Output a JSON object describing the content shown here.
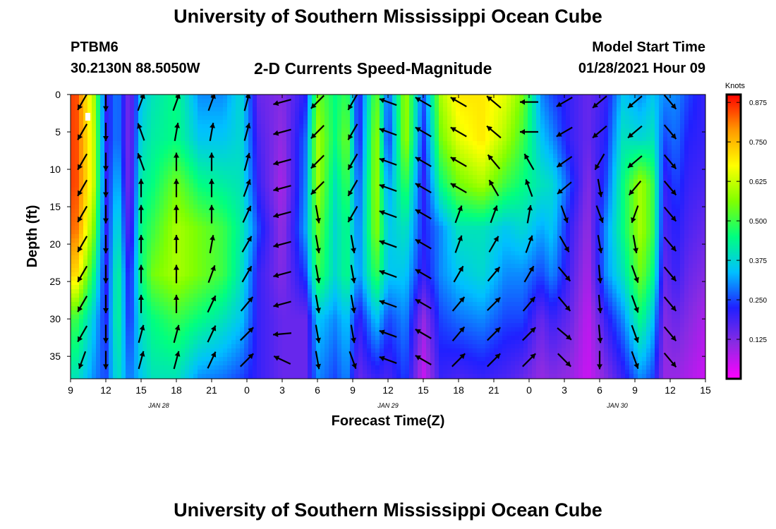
{
  "header": {
    "title": "University of Southern Mississippi Ocean Cube",
    "station": "PTBM6",
    "coords": "30.2130N 88.5050W",
    "subtitle": "2-D Currents Speed-Magnitude",
    "model_label": "Model Start Time",
    "model_time": "01/28/2021 Hour 09"
  },
  "footer": {
    "title": "University of Southern Mississippi Ocean Cube"
  },
  "chart_data": {
    "type": "heatmap",
    "xlabel": "Forecast Time(Z)",
    "ylabel": "Depth (ft)",
    "x_tick_labels": [
      "9",
      "12",
      "15",
      "18",
      "21",
      "0",
      "3",
      "6",
      "9",
      "12",
      "15",
      "18",
      "21",
      "0",
      "3",
      "6",
      "9",
      "12",
      "15"
    ],
    "x_range_hours": [
      0,
      54
    ],
    "date_labels": [
      {
        "label": "JAN  28",
        "hour": 7.5
      },
      {
        "label": "JAN  29",
        "hour": 27
      },
      {
        "label": "JAN  30",
        "hour": 46.5
      }
    ],
    "y_ticks": [
      0,
      5,
      10,
      15,
      20,
      25,
      30,
      35
    ],
    "y_range": [
      0,
      38
    ],
    "y_inverted": true,
    "colorbar": {
      "label": "Knots",
      "ticks": [
        "0.875",
        "0.750",
        "0.625",
        "0.500",
        "0.375",
        "0.250",
        "0.125"
      ],
      "tick_values": [
        0.875,
        0.75,
        0.625,
        0.5,
        0.375,
        0.25,
        0.125
      ],
      "range": [
        0,
        0.9
      ],
      "colors": [
        "#ff00ff",
        "#8a2be2",
        "#2020ff",
        "#00c0ff",
        "#00ff80",
        "#80ff00",
        "#ffff00",
        "#ff9900",
        "#ff0000"
      ]
    },
    "speed_profiles_knots": [
      {
        "hour": 0.5,
        "profile": [
          0.85,
          0.85,
          0.85,
          0.82,
          0.72,
          0.5,
          0.4
        ]
      },
      {
        "hour": 2.0,
        "profile": [
          0.6,
          0.62,
          0.62,
          0.55,
          0.45,
          0.35,
          0.3
        ]
      },
      {
        "hour": 3.0,
        "profile": [
          0.2,
          0.2,
          0.2,
          0.2,
          0.2,
          0.22,
          0.25
        ]
      },
      {
        "hour": 4.0,
        "profile": [
          0.3,
          0.3,
          0.35,
          0.4,
          0.45,
          0.45,
          0.4
        ]
      },
      {
        "hour": 5.0,
        "profile": [
          0.12,
          0.12,
          0.12,
          0.15,
          0.2,
          0.22,
          0.28
        ]
      },
      {
        "hour": 6.0,
        "profile": [
          0.35,
          0.38,
          0.42,
          0.45,
          0.45,
          0.4,
          0.35
        ]
      },
      {
        "hour": 7.0,
        "profile": [
          0.4,
          0.42,
          0.45,
          0.5,
          0.55,
          0.45,
          0.4
        ]
      },
      {
        "hour": 9.0,
        "profile": [
          0.45,
          0.45,
          0.55,
          0.6,
          0.6,
          0.5,
          0.4
        ]
      },
      {
        "hour": 11.0,
        "profile": [
          0.3,
          0.35,
          0.45,
          0.55,
          0.55,
          0.45,
          0.3
        ]
      },
      {
        "hour": 13.0,
        "profile": [
          0.3,
          0.35,
          0.42,
          0.5,
          0.5,
          0.4,
          0.28
        ]
      },
      {
        "hour": 14.5,
        "profile": [
          0.38,
          0.38,
          0.4,
          0.42,
          0.4,
          0.35,
          0.25
        ]
      },
      {
        "hour": 16.0,
        "profile": [
          0.15,
          0.18,
          0.2,
          0.25,
          0.2,
          0.2,
          0.2
        ]
      },
      {
        "hour": 18.0,
        "profile": [
          0.12,
          0.1,
          0.08,
          0.1,
          0.12,
          0.15,
          0.15
        ]
      },
      {
        "hour": 20.0,
        "profile": [
          0.22,
          0.28,
          0.3,
          0.32,
          0.25,
          0.15,
          0.15
        ]
      },
      {
        "hour": 21.0,
        "profile": [
          0.55,
          0.6,
          0.6,
          0.55,
          0.5,
          0.35,
          0.3
        ]
      },
      {
        "hour": 22.5,
        "profile": [
          0.45,
          0.45,
          0.4,
          0.38,
          0.38,
          0.3,
          0.25
        ]
      },
      {
        "hour": 23.5,
        "profile": [
          0.5,
          0.55,
          0.5,
          0.45,
          0.45,
          0.35,
          0.3
        ]
      },
      {
        "hour": 24.5,
        "profile": [
          0.2,
          0.2,
          0.25,
          0.28,
          0.3,
          0.2,
          0.15
        ]
      },
      {
        "hour": 26.0,
        "profile": [
          0.55,
          0.6,
          0.6,
          0.58,
          0.5,
          0.35,
          0.2
        ]
      },
      {
        "hour": 27.0,
        "profile": [
          0.25,
          0.22,
          0.3,
          0.35,
          0.35,
          0.25,
          0.18
        ]
      },
      {
        "hour": 28.5,
        "profile": [
          0.6,
          0.6,
          0.5,
          0.4,
          0.35,
          0.3,
          0.25
        ]
      },
      {
        "hour": 30.0,
        "profile": [
          0.25,
          0.22,
          0.2,
          0.22,
          0.2,
          0.1,
          0.05
        ]
      },
      {
        "hour": 31.5,
        "profile": [
          0.6,
          0.55,
          0.45,
          0.3,
          0.3,
          0.25,
          0.2
        ]
      },
      {
        "hour": 33.0,
        "profile": [
          0.7,
          0.65,
          0.55,
          0.4,
          0.35,
          0.28,
          0.18
        ]
      },
      {
        "hour": 35.0,
        "profile": [
          0.7,
          0.7,
          0.6,
          0.4,
          0.38,
          0.3,
          0.2
        ]
      },
      {
        "hour": 37.0,
        "profile": [
          0.65,
          0.6,
          0.5,
          0.35,
          0.3,
          0.25,
          0.18
        ]
      },
      {
        "hour": 38.5,
        "profile": [
          0.55,
          0.5,
          0.45,
          0.38,
          0.3,
          0.25,
          0.15
        ]
      },
      {
        "hour": 40.0,
        "profile": [
          0.3,
          0.35,
          0.4,
          0.32,
          0.25,
          0.15,
          0.1
        ]
      },
      {
        "hour": 41.0,
        "profile": [
          0.25,
          0.3,
          0.38,
          0.35,
          0.3,
          0.2,
          0.12
        ]
      },
      {
        "hour": 42.5,
        "profile": [
          0.2,
          0.2,
          0.25,
          0.2,
          0.18,
          0.15,
          0.1
        ]
      },
      {
        "hour": 44.0,
        "profile": [
          0.15,
          0.15,
          0.12,
          0.1,
          0.08,
          0.06,
          0.05
        ]
      },
      {
        "hour": 45.5,
        "profile": [
          0.2,
          0.22,
          0.25,
          0.3,
          0.3,
          0.2,
          0.12
        ]
      },
      {
        "hour": 47.0,
        "profile": [
          0.35,
          0.4,
          0.45,
          0.45,
          0.4,
          0.3,
          0.2
        ]
      },
      {
        "hour": 48.5,
        "profile": [
          0.3,
          0.38,
          0.6,
          0.6,
          0.55,
          0.45,
          0.3
        ]
      },
      {
        "hour": 49.5,
        "profile": [
          0.35,
          0.4,
          0.5,
          0.5,
          0.45,
          0.35,
          0.25
        ]
      },
      {
        "hour": 50.5,
        "profile": [
          0.3,
          0.25,
          0.2,
          0.18,
          0.15,
          0.12,
          0.1
        ]
      },
      {
        "hour": 51.5,
        "profile": [
          0.3,
          0.28,
          0.25,
          0.22,
          0.2,
          0.15,
          0.1
        ]
      },
      {
        "hour": 52.5,
        "profile": [
          0.25,
          0.22,
          0.2,
          0.18,
          0.15,
          0.12,
          0.08
        ]
      },
      {
        "hour": 54.0,
        "profile": [
          0.2,
          0.2,
          0.18,
          0.15,
          0.12,
          0.08,
          0.05
        ]
      }
    ],
    "profile_depths_ft": [
      0,
      6,
      12,
      18,
      24,
      30,
      38
    ],
    "vector_depths_ft": [
      1,
      5,
      9,
      12.5,
      16,
      20,
      24,
      28,
      32,
      35.5
    ],
    "vector_columns": [
      {
        "hour": 1.0,
        "dirs": [
          210,
          210,
          210,
          210,
          210,
          210,
          210,
          210,
          210,
          200
        ]
      },
      {
        "hour": 3.0,
        "dirs": [
          180,
          180,
          180,
          180,
          180,
          180,
          180,
          180,
          180,
          180
        ]
      },
      {
        "hour": 6.0,
        "dirs": [
          20,
          340,
          340,
          0,
          0,
          0,
          0,
          0,
          15,
          15
        ]
      },
      {
        "hour": 9.0,
        "dirs": [
          20,
          10,
          0,
          0,
          0,
          0,
          0,
          0,
          15,
          15
        ]
      },
      {
        "hour": 12.0,
        "dirs": [
          20,
          10,
          0,
          0,
          0,
          10,
          20,
          25,
          25,
          25
        ]
      },
      {
        "hour": 15.0,
        "dirs": [
          15,
          15,
          15,
          20,
          25,
          30,
          30,
          40,
          45,
          45
        ]
      },
      {
        "hour": 18.0,
        "dirs": [
          255,
          255,
          255,
          255,
          255,
          255,
          255,
          255,
          265,
          295
        ]
      },
      {
        "hour": 21.0,
        "dirs": [
          225,
          225,
          225,
          225,
          170,
          170,
          170,
          170,
          170,
          170
        ]
      },
      {
        "hour": 24.0,
        "dirs": [
          210,
          210,
          210,
          210,
          210,
          170,
          170,
          170,
          170,
          160
        ]
      },
      {
        "hour": 27.0,
        "dirs": [
          290,
          290,
          290,
          290,
          290,
          290,
          290,
          290,
          290,
          290
        ]
      },
      {
        "hour": 30.0,
        "dirs": [
          300,
          300,
          300,
          300,
          300,
          300,
          300,
          300,
          300,
          300
        ]
      },
      {
        "hour": 33.0,
        "dirs": [
          300,
          300,
          300,
          300,
          20,
          20,
          30,
          40,
          40,
          45
        ]
      },
      {
        "hour": 36.0,
        "dirs": [
          310,
          310,
          320,
          330,
          20,
          30,
          40,
          45,
          45,
          45
        ]
      },
      {
        "hour": 39.0,
        "dirs": [
          270,
          270,
          330,
          340,
          10,
          20,
          30,
          40,
          45,
          45
        ]
      },
      {
        "hour": 42.0,
        "dirs": [
          240,
          240,
          235,
          230,
          160,
          150,
          140,
          140,
          130,
          135
        ]
      },
      {
        "hour": 45.0,
        "dirs": [
          230,
          230,
          210,
          170,
          160,
          170,
          175,
          175,
          175,
          180
        ]
      },
      {
        "hour": 48.0,
        "dirs": [
          230,
          230,
          230,
          220,
          200,
          170,
          160,
          160,
          160,
          160
        ]
      },
      {
        "hour": 51.0,
        "dirs": [
          140,
          140,
          140,
          140,
          140,
          140,
          140,
          140,
          140,
          140
        ]
      }
    ]
  }
}
